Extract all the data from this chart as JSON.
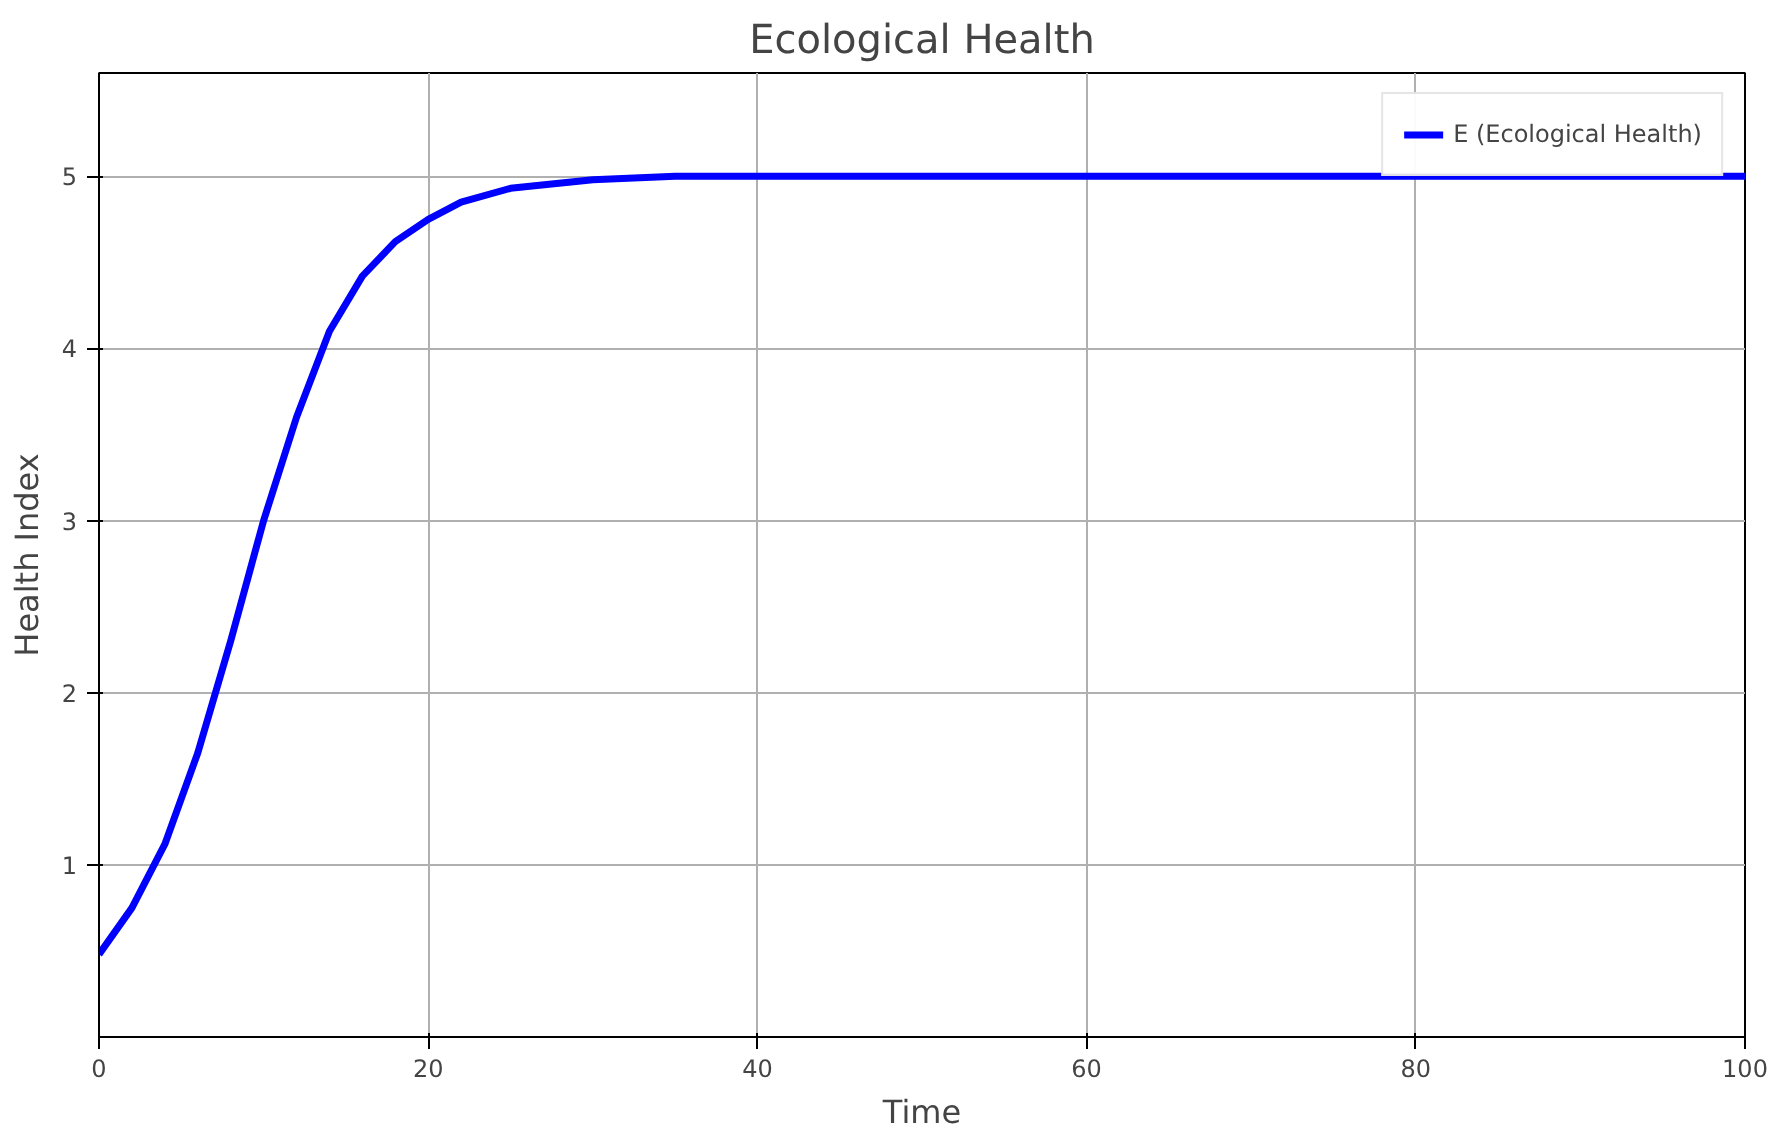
{
  "chart_data": {
    "type": "line",
    "title": "Ecological Health",
    "xlabel": "Time",
    "ylabel": "Health Index",
    "x": [
      0,
      2,
      4,
      6,
      8,
      10,
      12,
      14,
      16,
      18,
      20,
      22,
      25,
      30,
      35,
      40,
      50,
      60,
      70,
      80,
      90,
      100
    ],
    "series": [
      {
        "name": "E (Ecological Health)",
        "color": "#0000ff",
        "values": [
          0.48,
          0.75,
          1.12,
          1.65,
          2.3,
          3.0,
          3.6,
          4.1,
          4.42,
          4.62,
          4.75,
          4.85,
          4.93,
          4.98,
          5.0,
          5.0,
          5.0,
          5.0,
          5.0,
          5.0,
          5.0,
          5.0
        ]
      }
    ],
    "xlim": [
      0,
      100
    ],
    "ylim": [
      0,
      5.6
    ],
    "xticks": [
      0,
      20,
      40,
      60,
      80,
      100
    ],
    "yticks": [
      1,
      2,
      3,
      4,
      5
    ],
    "grid": true,
    "legend": "top right",
    "marker": "none",
    "line_style": "solid"
  }
}
